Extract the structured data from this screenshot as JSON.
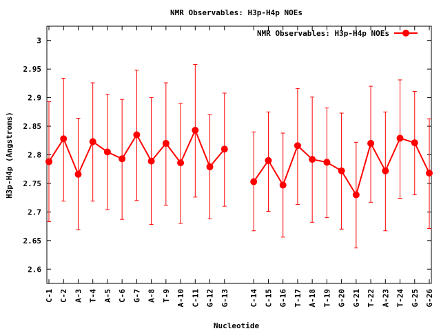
{
  "chart_data": {
    "type": "line",
    "title": "NMR Observables: H3p-H4p NOEs",
    "xlabel": "Nucleotide",
    "ylabel": "H3p-H4p (Angstroms)",
    "ylim": [
      2.575,
      3.025
    ],
    "yticks": [
      "2.6",
      "2.65",
      "2.7",
      "2.75",
      "2.8",
      "2.85",
      "2.9",
      "2.95",
      "3"
    ],
    "grid": false,
    "legend_position": "top-right",
    "color": "#ff0000",
    "segments": [
      {
        "categories": [
          "C-1",
          "C-2",
          "A-3",
          "T-4",
          "A-5",
          "C-6",
          "G-7",
          "A-8",
          "T-9",
          "A-10",
          "C-11",
          "G-12",
          "G-13"
        ],
        "values": [
          2.788,
          2.828,
          2.766,
          2.823,
          2.805,
          2.793,
          2.835,
          2.789,
          2.82,
          2.786,
          2.843,
          2.779,
          2.81
        ],
        "err_low": [
          2.683,
          2.719,
          2.669,
          2.719,
          2.704,
          2.687,
          2.72,
          2.678,
          2.712,
          2.68,
          2.726,
          2.688,
          2.71
        ],
        "err_high": [
          2.893,
          2.934,
          2.864,
          2.926,
          2.906,
          2.897,
          2.948,
          2.9,
          2.926,
          2.89,
          2.958,
          2.87,
          2.908
        ]
      },
      {
        "categories": [
          "C-14",
          "C-15",
          "G-16",
          "T-17",
          "A-18",
          "T-19",
          "G-20",
          "G-21",
          "T-22",
          "A-23",
          "T-24",
          "G-25",
          "G-26"
        ],
        "values": [
          2.753,
          2.79,
          2.747,
          2.816,
          2.792,
          2.787,
          2.772,
          2.73,
          2.82,
          2.772,
          2.829,
          2.821,
          2.768
        ],
        "err_low": [
          2.667,
          2.701,
          2.656,
          2.713,
          2.682,
          2.69,
          2.67,
          2.637,
          2.717,
          2.667,
          2.724,
          2.73,
          2.671
        ],
        "err_high": [
          2.84,
          2.875,
          2.838,
          2.916,
          2.901,
          2.882,
          2.873,
          2.822,
          2.92,
          2.875,
          2.931,
          2.911,
          2.863
        ]
      }
    ]
  }
}
